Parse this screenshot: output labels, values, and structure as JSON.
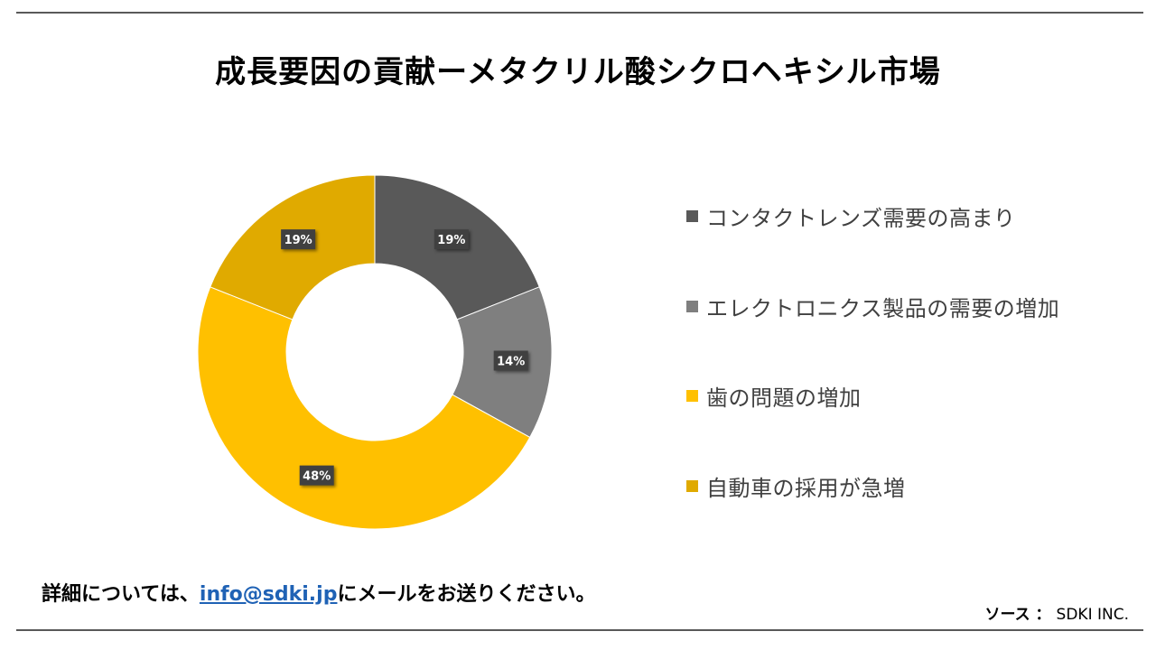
{
  "title": "成長要因の貢献ーメタクリル酸シクロヘキシル市場",
  "chart_data": {
    "type": "pie",
    "donut": true,
    "categories": [
      "コンタクトレンズ需要の高まり",
      "エレクトロニクス製品の需要の増加",
      "歯の問題の増加",
      "自動車の採用が急増"
    ],
    "values": [
      19,
      14,
      48,
      19
    ],
    "value_labels": [
      "19%",
      "14%",
      "48%",
      "19%"
    ],
    "colors": [
      "#595959",
      "#7f7f7f",
      "#ffc000",
      "#e0aa00"
    ],
    "legend_position": "right"
  },
  "legend": {
    "items": [
      {
        "label": "コンタクトレンズ需要の高まり",
        "color": "#595959"
      },
      {
        "label": "エレクトロニクス製品の需要の増加",
        "color": "#7f7f7f"
      },
      {
        "label": "歯の問題の増加",
        "color": "#ffc000"
      },
      {
        "label": "自動車の採用が急増",
        "color": "#e0aa00"
      }
    ]
  },
  "footer": {
    "prefix": "詳細については、",
    "email": "info@sdki.jp",
    "suffix": "にメールをお送りください。"
  },
  "source": {
    "label": "ソース ：",
    "value": "SDKI INC."
  }
}
